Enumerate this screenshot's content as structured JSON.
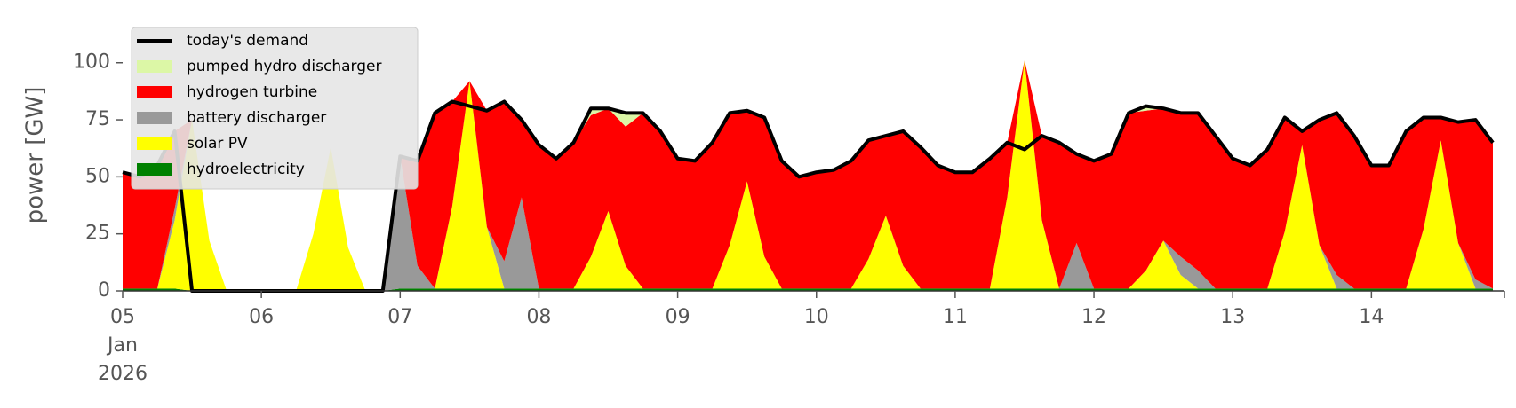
{
  "chart_data": {
    "type": "stacked_area",
    "y_label": "power [GW]",
    "x": [
      "2026-01-05T00:00",
      "2026-01-05T03:00",
      "2026-01-05T06:00",
      "2026-01-05T09:00",
      "2026-01-05T12:00",
      "2026-01-05T15:00",
      "2026-01-05T18:00",
      "2026-01-05T21:00",
      "2026-01-06T00:00",
      "2026-01-06T03:00",
      "2026-01-06T06:00",
      "2026-01-06T09:00",
      "2026-01-06T12:00",
      "2026-01-06T15:00",
      "2026-01-06T18:00",
      "2026-01-06T21:00",
      "2026-01-07T00:00",
      "2026-01-07T03:00",
      "2026-01-07T06:00",
      "2026-01-07T09:00",
      "2026-01-07T12:00",
      "2026-01-07T15:00",
      "2026-01-07T18:00",
      "2026-01-07T21:00",
      "2026-01-08T00:00",
      "2026-01-08T03:00",
      "2026-01-08T06:00",
      "2026-01-08T09:00",
      "2026-01-08T12:00",
      "2026-01-08T15:00",
      "2026-01-08T18:00",
      "2026-01-08T21:00",
      "2026-01-09T00:00",
      "2026-01-09T03:00",
      "2026-01-09T06:00",
      "2026-01-09T09:00",
      "2026-01-09T12:00",
      "2026-01-09T15:00",
      "2026-01-09T18:00",
      "2026-01-09T21:00",
      "2026-01-10T00:00",
      "2026-01-10T03:00",
      "2026-01-10T06:00",
      "2026-01-10T09:00",
      "2026-01-10T12:00",
      "2026-01-10T15:00",
      "2026-01-10T18:00",
      "2026-01-10T21:00",
      "2026-01-11T00:00",
      "2026-01-11T03:00",
      "2026-01-11T06:00",
      "2026-01-11T09:00",
      "2026-01-11T12:00",
      "2026-01-11T15:00",
      "2026-01-11T18:00",
      "2026-01-11T21:00",
      "2026-01-12T00:00",
      "2026-01-12T03:00",
      "2026-01-12T06:00",
      "2026-01-12T09:00",
      "2026-01-12T12:00",
      "2026-01-12T15:00",
      "2026-01-12T18:00",
      "2026-01-12T21:00",
      "2026-01-13T00:00",
      "2026-01-13T03:00",
      "2026-01-13T06:00",
      "2026-01-13T09:00",
      "2026-01-13T12:00",
      "2026-01-13T15:00",
      "2026-01-13T18:00",
      "2026-01-13T21:00",
      "2026-01-14T00:00",
      "2026-01-14T03:00",
      "2026-01-14T06:00",
      "2026-01-14T09:00",
      "2026-01-14T12:00",
      "2026-01-14T15:00",
      "2026-01-14T18:00",
      "2026-01-14T21:00"
    ],
    "series": [
      {
        "name": "hydroelectricity",
        "color": "#008000",
        "values": [
          1,
          1,
          1,
          1,
          0,
          0,
          0,
          0,
          0,
          0,
          0,
          0,
          0,
          0,
          0,
          0,
          1,
          1,
          1,
          1,
          1,
          1,
          1,
          1,
          1,
          1,
          1,
          1,
          1,
          1,
          1,
          1,
          1,
          1,
          1,
          1,
          1,
          1,
          1,
          1,
          1,
          1,
          1,
          1,
          1,
          1,
          1,
          1,
          1,
          1,
          1,
          1,
          1,
          1,
          1,
          1,
          1,
          1,
          1,
          1,
          1,
          1,
          1,
          1,
          1,
          1,
          1,
          1,
          1,
          1,
          1,
          1,
          1,
          1,
          1,
          1,
          1,
          1,
          1,
          1
        ]
      },
      {
        "name": "solar PV",
        "color": "#ffff00",
        "values": [
          0,
          0,
          0,
          30,
          75,
          22,
          0,
          0,
          0,
          0,
          0,
          25,
          63,
          19,
          0,
          0,
          0,
          0,
          0,
          36,
          91,
          27,
          0,
          0,
          0,
          0,
          0,
          14,
          34,
          10,
          0,
          0,
          0,
          0,
          0,
          19,
          47,
          14,
          0,
          0,
          0,
          0,
          0,
          13,
          32,
          10,
          0,
          0,
          0,
          0,
          0,
          40,
          100,
          30,
          0,
          0,
          0,
          0,
          0,
          8,
          21,
          6,
          0,
          0,
          0,
          0,
          0,
          25,
          63,
          19,
          0,
          0,
          0,
          0,
          0,
          26,
          65,
          20,
          0,
          0
        ]
      },
      {
        "name": "battery discharger",
        "color": "#999999",
        "values": [
          0,
          0,
          0,
          5,
          0,
          0,
          0,
          0,
          0,
          0,
          0,
          0,
          0,
          0,
          0,
          0,
          58,
          10,
          0,
          0,
          0,
          0,
          12,
          40,
          0,
          0,
          0,
          0,
          0,
          0,
          0,
          0,
          0,
          0,
          0,
          0,
          0,
          0,
          0,
          0,
          0,
          0,
          0,
          0,
          0,
          0,
          0,
          0,
          0,
          0,
          0,
          0,
          0,
          0,
          0,
          20,
          0,
          0,
          0,
          0,
          0,
          8,
          8,
          0,
          0,
          0,
          0,
          0,
          0,
          0,
          6,
          0,
          0,
          0,
          0,
          0,
          0,
          0,
          4,
          0
        ]
      },
      {
        "name": "hydrogen turbine",
        "color": "#ff0000",
        "values": [
          51,
          49,
          54,
          34,
          0,
          0,
          0,
          0,
          0,
          0,
          0,
          0,
          0,
          0,
          0,
          0,
          0,
          46,
          77,
          46,
          0,
          51,
          70,
          34,
          63,
          57,
          64,
          62,
          45,
          61,
          77,
          69,
          57,
          56,
          64,
          58,
          31,
          61,
          56,
          49,
          51,
          52,
          56,
          52,
          35,
          59,
          62,
          54,
          51,
          51,
          57,
          24,
          0,
          37,
          64,
          39,
          56,
          59,
          77,
          70,
          58,
          63,
          69,
          67,
          57,
          54,
          61,
          50,
          6,
          55,
          71,
          67,
          54,
          54,
          69,
          49,
          10,
          53,
          70,
          64
        ]
      },
      {
        "name": "pumped hydro discharger",
        "color": "#dcf7a6",
        "values": [
          0,
          0,
          0,
          0,
          0,
          0,
          0,
          0,
          0,
          0,
          0,
          0,
          0,
          0,
          0,
          0,
          0,
          0,
          0,
          0,
          0,
          0,
          0,
          0,
          0,
          0,
          0,
          3,
          0,
          6,
          0,
          0,
          0,
          0,
          0,
          0,
          0,
          0,
          0,
          0,
          0,
          0,
          0,
          0,
          0,
          0,
          0,
          0,
          0,
          0,
          0,
          0,
          0,
          0,
          0,
          0,
          0,
          0,
          0,
          2,
          0,
          0,
          0,
          0,
          0,
          0,
          0,
          0,
          0,
          0,
          0,
          0,
          0,
          0,
          0,
          0,
          0,
          0,
          0,
          0
        ]
      }
    ],
    "line_series": {
      "name": "today's demand",
      "color": "#000000",
      "values": [
        52,
        50,
        55,
        70,
        0,
        0,
        0,
        0,
        0,
        0,
        0,
        0,
        0,
        0,
        0,
        0,
        59,
        57,
        78,
        83,
        81,
        79,
        83,
        75,
        64,
        58,
        65,
        80,
        80,
        78,
        78,
        70,
        58,
        57,
        65,
        78,
        79,
        76,
        57,
        50,
        52,
        53,
        57,
        66,
        68,
        70,
        63,
        55,
        52,
        52,
        58,
        65,
        62,
        68,
        65,
        60,
        57,
        60,
        78,
        81,
        80,
        78,
        78,
        68,
        58,
        55,
        62,
        76,
        70,
        75,
        78,
        68,
        55,
        55,
        70,
        76,
        76,
        74,
        75,
        65
      ]
    },
    "xlim": [
      "2026-01-05T00:00",
      "2026-01-14T23:00"
    ],
    "xticks": [
      {
        "value": "2026-01-05T00:00",
        "label": "05\nJan\n2026"
      },
      {
        "value": "2026-01-06T00:00",
        "label": "06"
      },
      {
        "value": "2026-01-07T00:00",
        "label": "07"
      },
      {
        "value": "2026-01-08T00:00",
        "label": "08"
      },
      {
        "value": "2026-01-09T00:00",
        "label": "09"
      },
      {
        "value": "2026-01-10T00:00",
        "label": "10"
      },
      {
        "value": "2026-01-11T00:00",
        "label": "11"
      },
      {
        "value": "2026-01-12T00:00",
        "label": "12"
      },
      {
        "value": "2026-01-13T00:00",
        "label": "13"
      },
      {
        "value": "2026-01-14T00:00",
        "label": "14"
      }
    ],
    "ylim": [
      0,
      117
    ],
    "yticks": [
      0,
      25,
      50,
      75,
      100
    ],
    "legend": "upper left"
  }
}
